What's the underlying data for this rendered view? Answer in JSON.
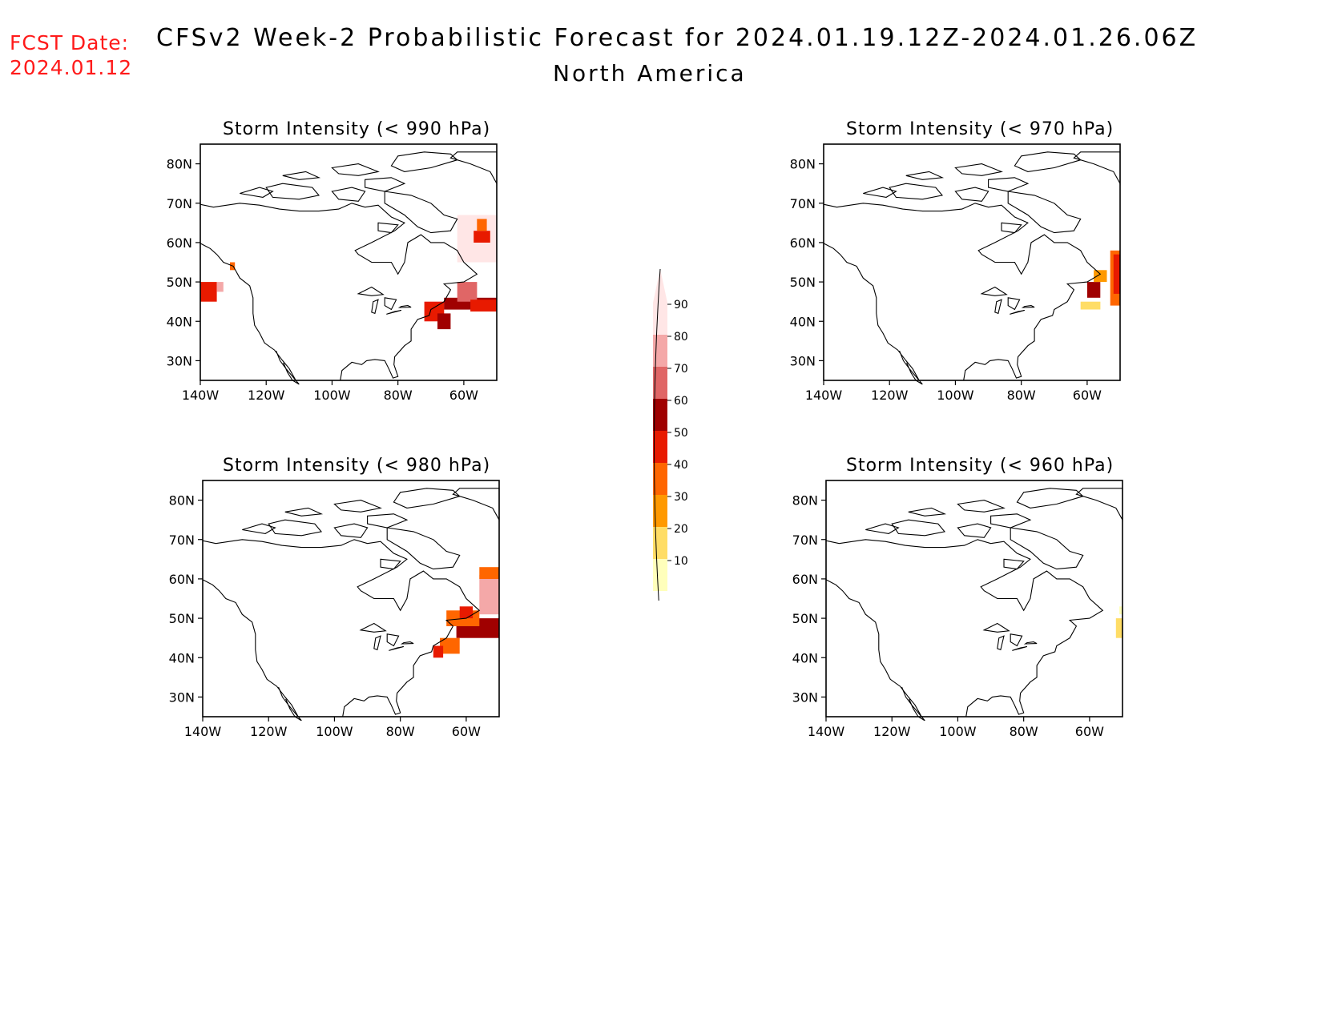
{
  "header": {
    "fcst_label": "FCST Date:",
    "fcst_date": "2024.01.12",
    "title": "CFSv2 Week-2 Probabilistic Forecast for 2024.01.19.12Z-2024.01.26.06Z",
    "subtitle": "North America"
  },
  "axes": {
    "lat_labels": [
      "80N",
      "70N",
      "60N",
      "50N",
      "40N",
      "30N"
    ],
    "lon_labels": [
      "140W",
      "120W",
      "100W",
      "80W",
      "60W"
    ]
  },
  "panels": [
    {
      "id": "p990",
      "title": "Storm Intensity (< 990 hPa)"
    },
    {
      "id": "p970",
      "title": "Storm Intensity (< 970 hPa)"
    },
    {
      "id": "p980",
      "title": "Storm Intensity (< 980 hPa)"
    },
    {
      "id": "p960",
      "title": "Storm Intensity (< 960 hPa)"
    }
  ],
  "colorbar": {
    "levels": [
      "90",
      "80",
      "70",
      "60",
      "50",
      "40",
      "30",
      "20",
      "10"
    ],
    "colors": [
      "#ffe6e6",
      "#f4a8a8",
      "#e06666",
      "#a00000",
      "#e81a00",
      "#ff6600",
      "#ff9900",
      "#ffdd66",
      "#ffffbb"
    ]
  }
}
